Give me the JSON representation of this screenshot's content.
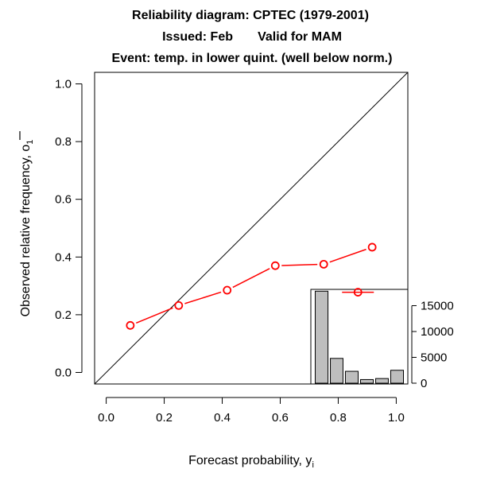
{
  "chart_data": {
    "type": "line",
    "title": [
      "Reliability diagram: CPTEC (1979-2001)",
      "Issued: Feb       Valid for MAM",
      "Event: temp. in lower quint. (well below norm.)"
    ],
    "xlabel": "Forecast probability, y",
    "xlabel_sub": "i",
    "ylabel": "Observed relative frequency, o",
    "ylabel_sub": "1",
    "xlim": [
      -0.04,
      1.04
    ],
    "ylim": [
      -0.04,
      1.04
    ],
    "xticks": [
      0.0,
      0.2,
      0.4,
      0.6,
      0.8,
      1.0
    ],
    "yticks": [
      0.0,
      0.2,
      0.4,
      0.6,
      0.8,
      1.0
    ],
    "xtick_labels": [
      "0.0",
      "0.2",
      "0.4",
      "0.6",
      "0.8",
      "1.0"
    ],
    "ytick_labels": [
      "0.0",
      "0.2",
      "0.4",
      "0.6",
      "0.8",
      "1.0"
    ],
    "diagonal": [
      [
        -0.04,
        -0.04
      ],
      [
        1.04,
        1.04
      ]
    ],
    "series": [
      {
        "name": "reliability",
        "color": "#ff0000",
        "x": [
          0.083,
          0.25,
          0.417,
          0.583,
          0.75,
          0.917
        ],
        "y": [
          0.163,
          0.232,
          0.285,
          0.37,
          0.375,
          0.434
        ]
      }
    ],
    "inset_histogram": {
      "type": "bar",
      "bin_edges": [
        0.0,
        0.167,
        0.333,
        0.5,
        0.667,
        0.833,
        1.0
      ],
      "counts": [
        17800,
        4800,
        2300,
        700,
        900,
        2500
      ],
      "ylim": [
        0,
        18000
      ],
      "yticks": [
        0,
        5000,
        10000,
        15000
      ],
      "ytick_labels": [
        "0",
        "5000",
        "10000",
        "15000"
      ],
      "bar_color": "#bebebe",
      "mean_marker": {
        "x": 0.868,
        "y": 0.278,
        "color": "#ff0000"
      }
    }
  }
}
